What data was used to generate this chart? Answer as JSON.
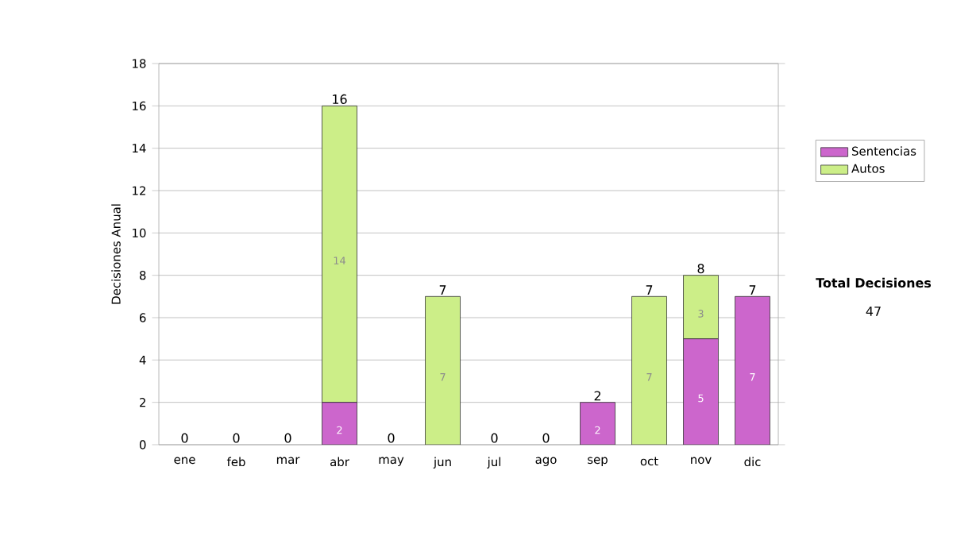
{
  "chart_data": {
    "type": "bar",
    "stacked": true,
    "ylabel": "Decisiones Anual",
    "categories": [
      "ene",
      "feb",
      "mar",
      "abr",
      "may",
      "jun",
      "jul",
      "ago",
      "sep",
      "oct",
      "nov",
      "dic"
    ],
    "series": [
      {
        "name": "Sentencias",
        "color": "#cc66cc",
        "values": [
          0,
          0,
          0,
          2,
          0,
          0,
          0,
          0,
          2,
          0,
          5,
          7
        ],
        "value_labels": [
          null,
          null,
          null,
          "2",
          null,
          null,
          null,
          null,
          "2",
          null,
          "5",
          "7"
        ]
      },
      {
        "name": "Autos",
        "color": "#ccee88",
        "values": [
          0,
          0,
          0,
          14,
          0,
          7,
          0,
          0,
          0,
          7,
          3,
          0
        ],
        "value_labels": [
          null,
          null,
          null,
          "14",
          null,
          "7",
          null,
          null,
          null,
          "7",
          "3",
          null
        ]
      }
    ],
    "ylim": [
      0,
      18
    ],
    "yticks": [
      0,
      2,
      4,
      6,
      8,
      10,
      12,
      14,
      16,
      18
    ],
    "grid": "y",
    "legend": "right",
    "totals": [
      "0",
      "0",
      "0",
      "16",
      "0",
      "7",
      "0",
      "0",
      "2",
      "7",
      "8",
      "7"
    ],
    "annotations": [
      "Total Decisiones",
      "47"
    ]
  }
}
